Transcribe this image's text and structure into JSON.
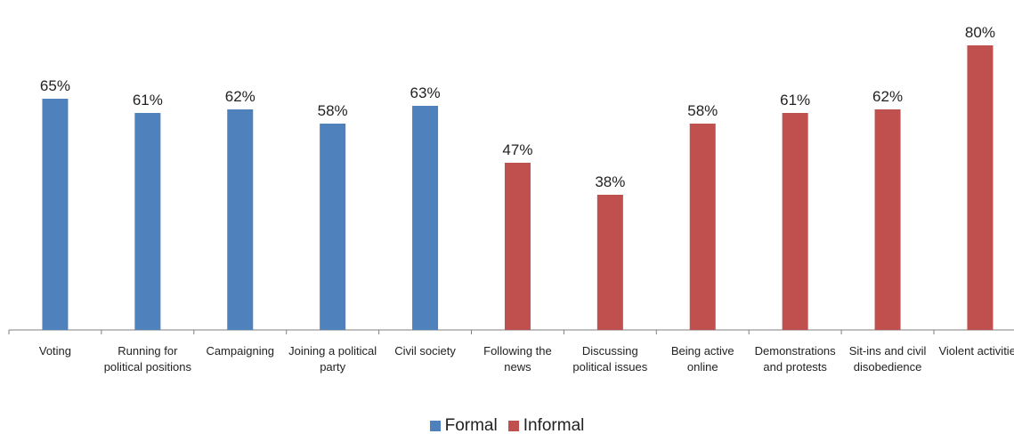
{
  "chart_data": {
    "type": "bar",
    "categories": [
      [
        "Voting"
      ],
      [
        "Running for",
        "political positions"
      ],
      [
        "Campaigning"
      ],
      [
        "Joining a political",
        "party"
      ],
      [
        "Civil society"
      ],
      [
        "Following the",
        "news"
      ],
      [
        "Discussing",
        "political issues"
      ],
      [
        "Being active",
        "online"
      ],
      [
        "Demonstrations",
        "and protests"
      ],
      [
        "Sit-ins and civil",
        "disobedience"
      ],
      [
        "Violent activities"
      ]
    ],
    "values": [
      65,
      61,
      62,
      58,
      63,
      47,
      38,
      58,
      61,
      62,
      80
    ],
    "value_labels": [
      "65%",
      "61%",
      "62%",
      "58%",
      "63%",
      "47%",
      "38%",
      "58%",
      "61%",
      "62%",
      "80%"
    ],
    "groups": [
      "formal",
      "formal",
      "formal",
      "formal",
      "formal",
      "informal",
      "informal",
      "informal",
      "informal",
      "informal",
      "informal"
    ],
    "series": [
      {
        "key": "formal",
        "name": "Formal",
        "color": "#4f81bd"
      },
      {
        "key": "informal",
        "name": "Informal",
        "color": "#c0504d"
      }
    ],
    "ylim": [
      0,
      100
    ],
    "grid": false,
    "legend_position": "bottom-center"
  }
}
